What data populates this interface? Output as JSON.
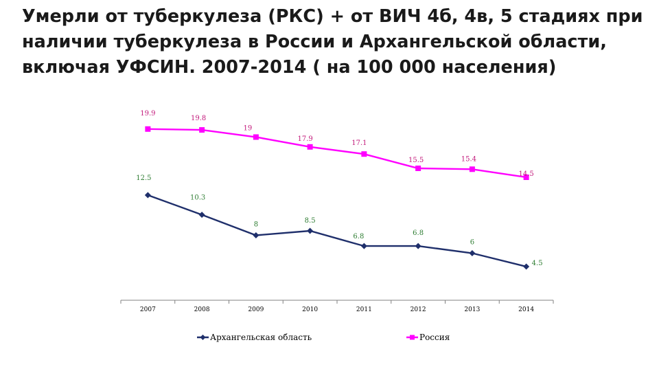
{
  "title_lines": [
    " Умерли от туберкулеза (РКС) + от ВИЧ 4б, 4в, 5 стадиях при",
    "наличии туберкулеза в России и Архангельской области,",
    "включая УФСИН. 2007-2014 ( на 100 000 населения)"
  ],
  "chart_data": {
    "type": "line",
    "categories": [
      "2007",
      "2008",
      "2009",
      "2010",
      "2011",
      "2012",
      "2013",
      "2014"
    ],
    "ylim": [
      0,
      22
    ],
    "grid": false,
    "legend_position": "bottom",
    "series": [
      {
        "name": "Архангельская область",
        "values": [
          12.5,
          10.3,
          8,
          8.5,
          6.8,
          6.8,
          6,
          4.5
        ],
        "labels": [
          "12.5",
          "10.3",
          "8",
          "8.5",
          "6.8",
          "6.8",
          "6",
          "4.5"
        ],
        "color": "#1f2f6b",
        "label_color": "#2e7d32",
        "marker": "diamond"
      },
      {
        "name": "Россия",
        "values": [
          19.9,
          19.8,
          19,
          17.9,
          17.1,
          15.5,
          15.4,
          14.5
        ],
        "labels": [
          "19.9",
          "19.8",
          "19",
          "17.9",
          "17.1",
          "15.5",
          "15.4",
          "14.5"
        ],
        "color": "#ff00ff",
        "label_color": "#c2187a",
        "marker": "square"
      }
    ]
  }
}
